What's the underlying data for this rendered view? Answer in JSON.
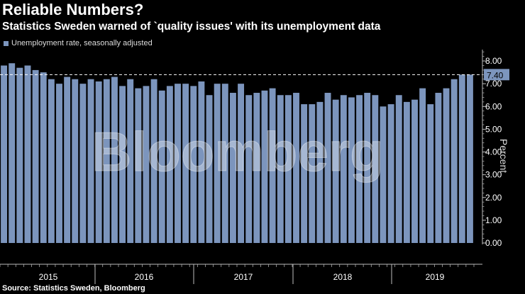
{
  "header": {
    "title": "Reliable Numbers?",
    "subtitle": "Statistics Sweden warned of `quality issues' with its unemployment data"
  },
  "legend": {
    "label": "Unemployment rate, seasonally adjusted"
  },
  "watermark": "Bloomberg",
  "source": "Source: Statistics Sweden, Bloomberg",
  "colors": {
    "bar": "#7c95bd",
    "bar_dim": "#6a7e99",
    "background": "#000000",
    "axis": "#bbbbbb"
  },
  "chart_data": {
    "type": "bar",
    "title": "Reliable Numbers?",
    "ylabel": "Percent",
    "ylim": [
      0,
      8.5
    ],
    "yticks": [
      0,
      1,
      2,
      3,
      4,
      5,
      6,
      7,
      8
    ],
    "ytick_labels": [
      "0.00",
      "1.00",
      "2.00",
      "3.00",
      "4.00",
      "5.00",
      "6.00",
      "7.00",
      "8.00"
    ],
    "last_value_label": "7.40",
    "reference_line": 7.4,
    "years": [
      "2015",
      "2016",
      "2017",
      "2018",
      "2019"
    ],
    "values": [
      7.8,
      7.9,
      7.7,
      7.8,
      7.6,
      7.5,
      7.2,
      7.0,
      7.3,
      7.2,
      7.0,
      7.2,
      7.1,
      7.2,
      7.3,
      6.9,
      7.2,
      6.8,
      6.9,
      7.2,
      6.7,
      6.9,
      7.0,
      7.0,
      6.9,
      7.1,
      6.5,
      7.0,
      7.0,
      6.6,
      7.0,
      6.5,
      6.6,
      6.7,
      6.8,
      6.5,
      6.5,
      6.6,
      6.1,
      6.1,
      6.2,
      6.6,
      6.3,
      6.5,
      6.4,
      6.5,
      6.6,
      6.5,
      6.0,
      6.1,
      6.5,
      6.2,
      6.3,
      6.8,
      6.1,
      6.6,
      6.8,
      7.2,
      7.4,
      7.4
    ]
  }
}
